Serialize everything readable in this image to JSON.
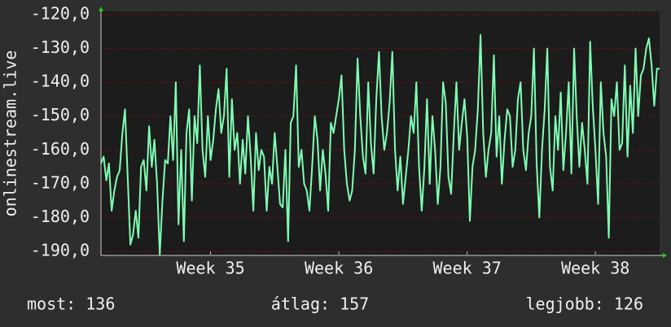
{
  "chart_data": {
    "type": "line",
    "ylabel": "onlinestream.live",
    "series": [
      {
        "name": "onlinestream.live",
        "color": "#7fffb4",
        "values": [
          -164,
          -162,
          -169,
          -164,
          -178,
          -172,
          -168,
          -166,
          -155,
          -148,
          -168,
          -188,
          -185,
          -178,
          -186,
          -165,
          -163,
          -172,
          -153,
          -165,
          -157,
          -170,
          -191,
          -175,
          -163,
          -164,
          -150,
          -163,
          -140,
          -182,
          -160,
          -187,
          -155,
          -148,
          -175,
          -150,
          -158,
          -135,
          -160,
          -168,
          -150,
          -163,
          -157,
          -148,
          -142,
          -155,
          -150,
          -136,
          -168,
          -145,
          -160,
          -155,
          -170,
          -157,
          -167,
          -150,
          -162,
          -178,
          -155,
          -166,
          -160,
          -162,
          -178,
          -165,
          -170,
          -155,
          -165,
          -176,
          -177,
          -160,
          -187,
          -152,
          -150,
          -135,
          -165,
          -160,
          -170,
          -172,
          -178,
          -165,
          -150,
          -157,
          -172,
          -160,
          -167,
          -178,
          -152,
          -155,
          -150,
          -145,
          -138,
          -160,
          -170,
          -175,
          -172,
          -160,
          -133,
          -150,
          -162,
          -167,
          -140,
          -158,
          -167,
          -145,
          -131,
          -150,
          -160,
          -155,
          -146,
          -131,
          -160,
          -172,
          -162,
          -176,
          -168,
          -160,
          -150,
          -155,
          -140,
          -165,
          -178,
          -165,
          -145,
          -170,
          -150,
          -160,
          -176,
          -165,
          -140,
          -146,
          -168,
          -173,
          -155,
          -140,
          -160,
          -152,
          -145,
          -156,
          -181,
          -165,
          -160,
          -148,
          -126,
          -155,
          -168,
          -160,
          -155,
          -132,
          -162,
          -150,
          -170,
          -157,
          -148,
          -150,
          -165,
          -160,
          -145,
          -140,
          -160,
          -166,
          -155,
          -150,
          -130,
          -164,
          -180,
          -160,
          -148,
          -130,
          -165,
          -172,
          -150,
          -160,
          -143,
          -166,
          -155,
          -140,
          -167,
          -130,
          -150,
          -165,
          -152,
          -160,
          -170,
          -128,
          -147,
          -160,
          -176,
          -140,
          -155,
          -162,
          -186,
          -145,
          -150,
          -140,
          -160,
          -158,
          -135,
          -162,
          -141,
          -155,
          -130,
          -150,
          -138,
          -136,
          -130,
          -127,
          -135,
          -147,
          -136,
          -136
        ]
      }
    ],
    "xlim": [
      0,
      209
    ],
    "xticks": [
      {
        "value": 41,
        "label": "Week 35"
      },
      {
        "value": 89,
        "label": "Week 36"
      },
      {
        "value": 137,
        "label": "Week 37"
      },
      {
        "value": 185,
        "label": "Week 38"
      }
    ],
    "ylim": [
      -190,
      -120
    ],
    "yticks": [
      {
        "value": -190,
        "label": "-190,0"
      },
      {
        "value": -180,
        "label": "-180,0"
      },
      {
        "value": -170,
        "label": "-170,0"
      },
      {
        "value": -160,
        "label": "-160,0"
      },
      {
        "value": -150,
        "label": "-150,0"
      },
      {
        "value": -140,
        "label": "-140,0"
      },
      {
        "value": -130,
        "label": "-130,0"
      },
      {
        "value": -120,
        "label": "-120,0"
      }
    ],
    "grid": true,
    "footer": [
      "most: 136",
      "átlag: 157",
      "legjobb: 126"
    ]
  }
}
